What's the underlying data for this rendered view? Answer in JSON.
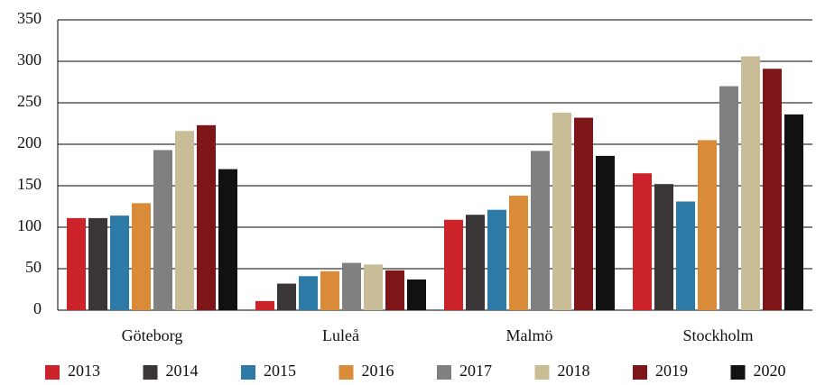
{
  "chart_data": {
    "type": "bar",
    "categories": [
      "Göteborg",
      "Luleå",
      "Malmö",
      "Stockholm"
    ],
    "series": [
      {
        "name": "2013",
        "color": "#cc2229",
        "values": [
          111,
          11,
          109,
          165
        ]
      },
      {
        "name": "2014",
        "color": "#3a3536",
        "values": [
          111,
          32,
          115,
          152
        ]
      },
      {
        "name": "2015",
        "color": "#2e7aa6",
        "values": [
          114,
          41,
          121,
          131
        ]
      },
      {
        "name": "2016",
        "color": "#d98b3a",
        "values": [
          129,
          47,
          138,
          205
        ]
      },
      {
        "name": "2017",
        "color": "#808080",
        "values": [
          193,
          57,
          192,
          270
        ]
      },
      {
        "name": "2018",
        "color": "#c8bd97",
        "values": [
          216,
          55,
          238,
          306
        ]
      },
      {
        "name": "2019",
        "color": "#7e1518",
        "values": [
          223,
          48,
          232,
          291
        ]
      },
      {
        "name": "2020",
        "color": "#111111",
        "values": [
          170,
          37,
          186,
          236
        ]
      }
    ],
    "ylim": [
      0,
      350
    ],
    "yticks": [
      0,
      50,
      100,
      150,
      200,
      250,
      300,
      350
    ],
    "grid": true,
    "legend": "bottom"
  }
}
